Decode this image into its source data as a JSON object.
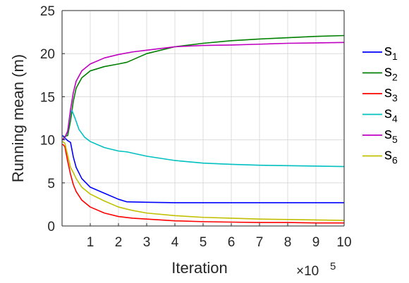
{
  "chart_data": {
    "type": "line",
    "xlabel": "Iteration",
    "ylabel": "Running mean (m)",
    "x_multiplier": {
      "base": "×10",
      "exponent": "5"
    },
    "xlim": [
      0,
      10
    ],
    "ylim": [
      0,
      25
    ],
    "xticks": [
      "1",
      "2",
      "3",
      "4",
      "5",
      "6",
      "7",
      "8",
      "9",
      "10"
    ],
    "yticks": [
      "0",
      "5",
      "10",
      "15",
      "20",
      "25"
    ],
    "grid": true,
    "legend_position": "right-outside",
    "series": [
      {
        "name": "s",
        "sub": "1",
        "color": "#0000ff",
        "x": [
          0.02,
          0.1,
          0.2,
          0.3,
          0.4,
          0.5,
          0.7,
          1,
          1.5,
          2,
          2.3,
          3,
          4,
          5,
          6,
          7,
          8,
          9,
          10
        ],
        "y": [
          10.5,
          10.2,
          9.9,
          9.7,
          8.0,
          6.8,
          5.5,
          4.5,
          3.8,
          3.1,
          2.8,
          2.75,
          2.7,
          2.7,
          2.7,
          2.7,
          2.7,
          2.7,
          2.7
        ]
      },
      {
        "name": "s",
        "sub": "2",
        "color": "#008000",
        "x": [
          0.02,
          0.1,
          0.2,
          0.3,
          0.4,
          0.5,
          0.7,
          1,
          1.5,
          2,
          2.3,
          3,
          4,
          5,
          6,
          7,
          8,
          9,
          10
        ],
        "y": [
          10.0,
          10.4,
          10.5,
          12.2,
          14.5,
          16.0,
          17.2,
          18.0,
          18.5,
          18.8,
          19.0,
          20.0,
          20.8,
          21.2,
          21.5,
          21.7,
          21.85,
          22.0,
          22.1
        ]
      },
      {
        "name": "s",
        "sub": "3",
        "color": "#ff0000",
        "x": [
          0.02,
          0.1,
          0.2,
          0.3,
          0.4,
          0.5,
          0.7,
          1,
          1.5,
          2,
          2.5,
          3,
          4,
          5,
          6,
          7,
          8,
          9,
          10
        ],
        "y": [
          9.5,
          9.2,
          7.5,
          6.0,
          4.8,
          4.0,
          3.0,
          2.2,
          1.5,
          1.1,
          0.9,
          0.8,
          0.6,
          0.5,
          0.45,
          0.4,
          0.4,
          0.35,
          0.35
        ]
      },
      {
        "name": "s",
        "sub": "4",
        "color": "#00c0c0",
        "x": [
          0.02,
          0.1,
          0.2,
          0.3,
          0.35,
          0.45,
          0.6,
          0.8,
          1,
          1.5,
          2,
          2.3,
          3,
          4,
          5,
          6,
          7,
          8,
          9,
          10
        ],
        "y": [
          10.0,
          10.2,
          11.0,
          13.2,
          13.4,
          12.6,
          11.2,
          10.3,
          9.8,
          9.1,
          8.7,
          8.6,
          8.1,
          7.6,
          7.3,
          7.15,
          7.05,
          7.0,
          6.95,
          6.9
        ]
      },
      {
        "name": "s",
        "sub": "5",
        "color": "#c000c0",
        "x": [
          0.02,
          0.1,
          0.2,
          0.3,
          0.4,
          0.5,
          0.7,
          1,
          1.5,
          2,
          2.5,
          3,
          4,
          5,
          6,
          7,
          8,
          9,
          10
        ],
        "y": [
          10.0,
          10.3,
          11.0,
          13.5,
          15.5,
          16.8,
          18.0,
          18.8,
          19.5,
          19.9,
          20.2,
          20.4,
          20.8,
          20.95,
          21.0,
          21.1,
          21.2,
          21.25,
          21.3
        ]
      },
      {
        "name": "s",
        "sub": "6",
        "color": "#c0c000",
        "x": [
          0.02,
          0.1,
          0.2,
          0.3,
          0.4,
          0.5,
          0.7,
          1,
          1.5,
          2,
          2.5,
          3,
          4,
          5,
          6,
          7,
          8,
          9,
          10
        ],
        "y": [
          9.8,
          9.6,
          8.2,
          6.8,
          6.2,
          5.5,
          4.5,
          3.7,
          2.9,
          2.2,
          1.8,
          1.5,
          1.2,
          1.0,
          0.9,
          0.8,
          0.75,
          0.7,
          0.65
        ]
      }
    ]
  }
}
